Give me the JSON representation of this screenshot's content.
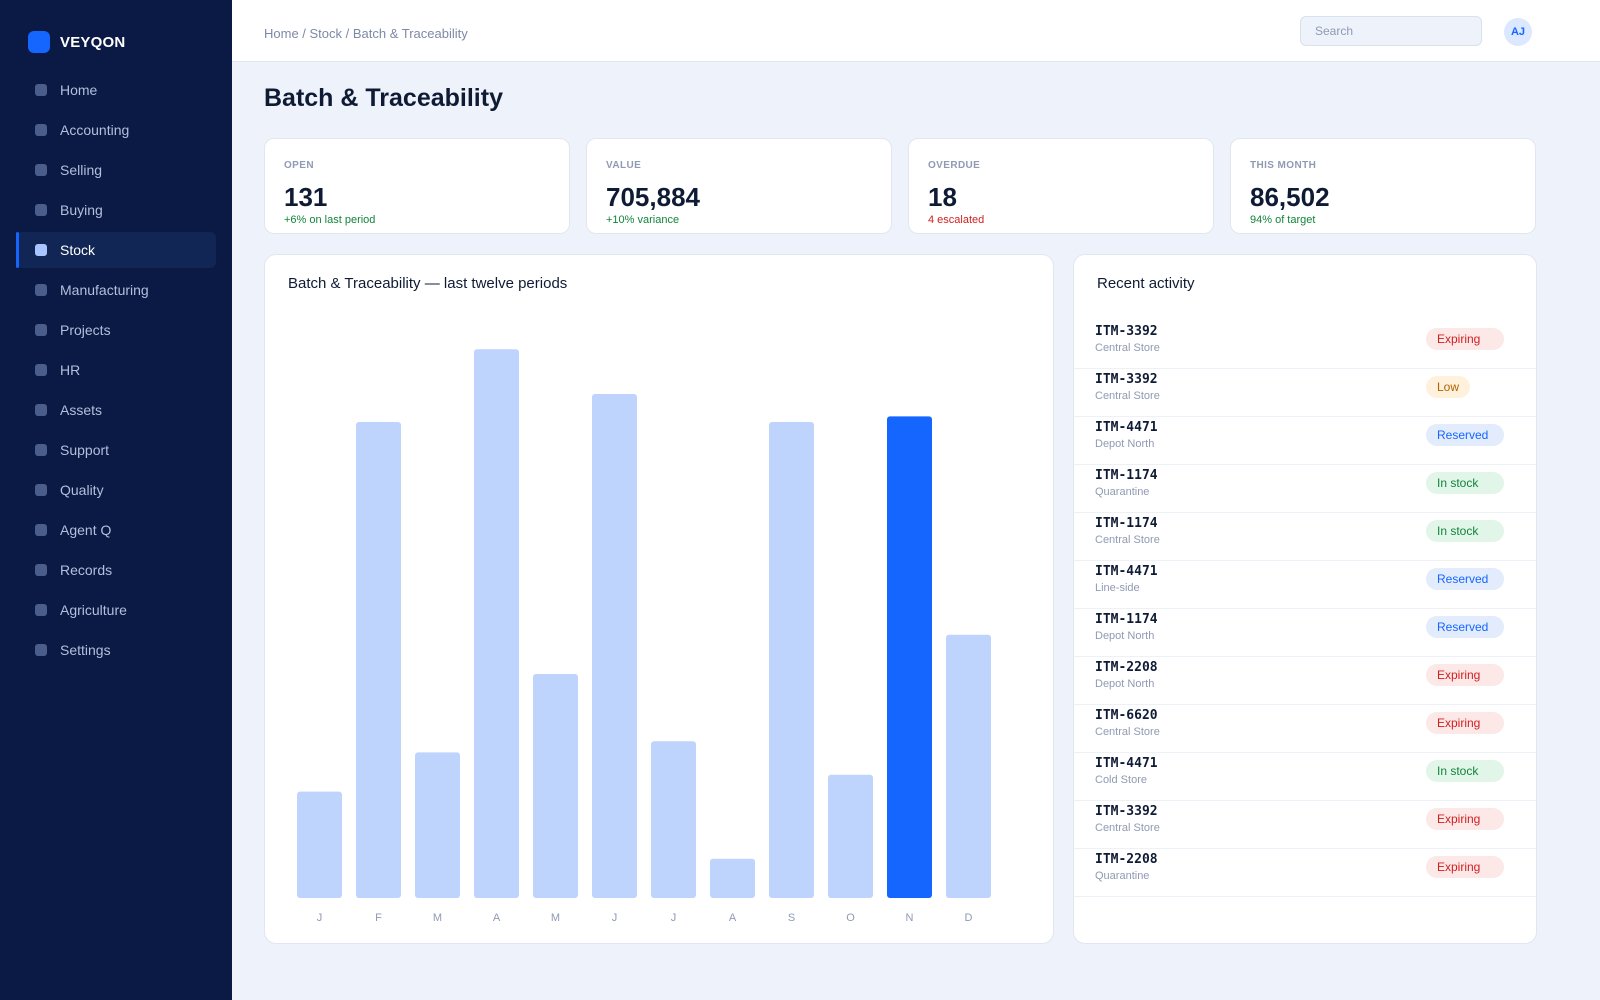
{
  "brand": {
    "name": "VEYQON"
  },
  "sidebar": {
    "items": [
      {
        "label": "Home"
      },
      {
        "label": "Accounting"
      },
      {
        "label": "Selling"
      },
      {
        "label": "Buying"
      },
      {
        "label": "Stock",
        "active": true
      },
      {
        "label": "Manufacturing"
      },
      {
        "label": "Projects"
      },
      {
        "label": "HR"
      },
      {
        "label": "Assets"
      },
      {
        "label": "Support"
      },
      {
        "label": "Quality"
      },
      {
        "label": "Agent Q"
      },
      {
        "label": "Records"
      },
      {
        "label": "Agriculture"
      },
      {
        "label": "Settings"
      }
    ]
  },
  "header": {
    "breadcrumb": "Home / Stock / Batch & Traceability",
    "search_placeholder": "Search",
    "avatar_initials": "AJ"
  },
  "page": {
    "title": "Batch & Traceability"
  },
  "kpis": [
    {
      "label": "OPEN",
      "value": "131",
      "delta": "+6% on last period",
      "tone": "pos"
    },
    {
      "label": "VALUE",
      "value": "705,884",
      "delta": "+10% variance",
      "tone": "pos"
    },
    {
      "label": "OVERDUE",
      "value": "18",
      "delta": "4 escalated",
      "tone": "neg"
    },
    {
      "label": "THIS MONTH",
      "value": "86,502",
      "delta": "94% of target",
      "tone": "pos"
    }
  ],
  "chart_data": {
    "type": "bar",
    "title": "Batch & Traceability — last twelve periods",
    "categories": [
      "J",
      "F",
      "M",
      "A",
      "M",
      "J",
      "J",
      "A",
      "S",
      "O",
      "N",
      "D"
    ],
    "values": [
      19,
      85,
      26,
      98,
      40,
      90,
      28,
      7,
      85,
      22,
      86,
      47
    ],
    "highlight_index": 10,
    "ylim": [
      0,
      100
    ],
    "grid": false,
    "colors": {
      "bar": "#bfd4fc",
      "highlight": "#1466ff"
    }
  },
  "activity": {
    "title": "Recent activity",
    "items": [
      {
        "id": "ITM-3392",
        "location": "Central Store",
        "status": "Expiring",
        "kind": "expiring"
      },
      {
        "id": "ITM-3392",
        "location": "Central Store",
        "status": "Low",
        "kind": "low"
      },
      {
        "id": "ITM-4471",
        "location": "Depot North",
        "status": "Reserved",
        "kind": "reserved"
      },
      {
        "id": "ITM-1174",
        "location": "Quarantine",
        "status": "In stock",
        "kind": "instock"
      },
      {
        "id": "ITM-1174",
        "location": "Central Store",
        "status": "In stock",
        "kind": "instock"
      },
      {
        "id": "ITM-4471",
        "location": "Line-side",
        "status": "Reserved",
        "kind": "reserved"
      },
      {
        "id": "ITM-1174",
        "location": "Depot North",
        "status": "Reserved",
        "kind": "reserved"
      },
      {
        "id": "ITM-2208",
        "location": "Depot North",
        "status": "Expiring",
        "kind": "expiring"
      },
      {
        "id": "ITM-6620",
        "location": "Central Store",
        "status": "Expiring",
        "kind": "expiring"
      },
      {
        "id": "ITM-4471",
        "location": "Cold Store",
        "status": "In stock",
        "kind": "instock"
      },
      {
        "id": "ITM-3392",
        "location": "Central Store",
        "status": "Expiring",
        "kind": "expiring"
      },
      {
        "id": "ITM-2208",
        "location": "Quarantine",
        "status": "Expiring",
        "kind": "expiring"
      }
    ]
  }
}
